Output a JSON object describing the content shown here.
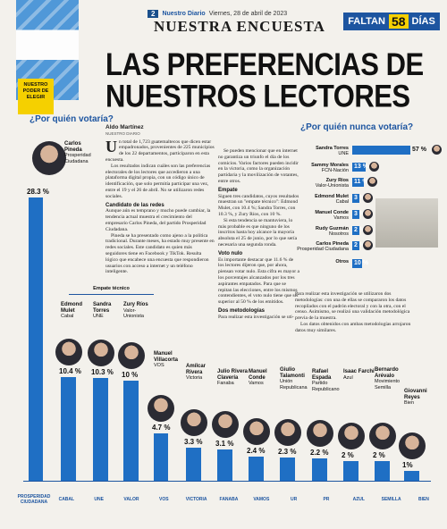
{
  "header": {
    "page_number": "2",
    "paper": "Nuestro Diario",
    "date": "Viernes, 28 de abril de 2023",
    "section": "NUESTRA ENCUESTA",
    "faltan_label": "FALTAN",
    "faltan_days": "58",
    "faltan_unit": "DÍAS",
    "headline": "LAS PREFERENCIAS DE NUESTROS LECTORES",
    "brand": "NUESTRO PODER DE ELEGIR"
  },
  "left_chart": {
    "question": "¿Por quién votaría?",
    "empate_label": "Empate técnico"
  },
  "chart_data": [
    {
      "type": "bar",
      "title": "¿Por quién votaría?",
      "categories": [
        "Carlos Pineda",
        "Edmond Mulet",
        "Sandra Torres",
        "Zury Ríos",
        "Manuel Villacorta",
        "Amílcar Rivera",
        "Julio Rivera Clavería",
        "Manuel Conde",
        "Giulio Talamonti",
        "Rafael Espada",
        "Isaac Farchi",
        "Bernardo Arévalo",
        "Giovanni Reyes"
      ],
      "parties": [
        "Prosperidad Ciudadana",
        "Cabal",
        "UNE",
        "Valor-Unionista",
        "VOS",
        "Victoria",
        "Fanaba",
        "Vamos",
        "Unión Republicana",
        "Partido Republicano",
        "Azul",
        "Movimiento Semilla",
        "Bien"
      ],
      "values": [
        28.3,
        10.4,
        10.3,
        10,
        4.7,
        3.3,
        3.1,
        2.4,
        2.3,
        2.2,
        2,
        2,
        1
      ],
      "labels": [
        "28.3 %",
        "10.4 %",
        "10.3 %",
        "10 %",
        "4.7 %",
        "3.3 %",
        "3.1 %",
        "2.4 %",
        "2.3 %",
        "2.2 %",
        "2 %",
        "2 %",
        "1%"
      ]
    },
    {
      "type": "bar",
      "title": "¿Por quién nunca votaría?",
      "categories": [
        "Sandra Torres",
        "Sammy Morales",
        "Zury Ríos",
        "Edmond Mulet",
        "Manuel Conde",
        "Rudy Guzmán",
        "Carlos Pineda",
        "Otros"
      ],
      "parties": [
        "UNE",
        "FCN-Nación",
        "Valor-Unionista",
        "Cabal",
        "Vamos",
        "Nosotros",
        "Prosperidad Ciudadana",
        ""
      ],
      "values": [
        57,
        13,
        11,
        3,
        3,
        2,
        2,
        10
      ],
      "labels": [
        "57 %",
        "13 %",
        "11 %",
        "3 %",
        "3 %",
        "2 %",
        "2 %",
        "10 %"
      ]
    }
  ],
  "article": {
    "author": "Aldo Martínez",
    "author_role": "NUESTRO DIARIO",
    "p1": "n total de 1,723 guatemaltecos que dicen estar empadronados, provenientes de 225 municipios de los 22 departamentos, participaron en esta encuesta.",
    "p2": "Los resultados indican cuáles son las preferencias electorales de los lectores que accedieron a una plataforma digital propia, con un código único de identificación, que solo permitía participar una vez, entre el 19 y el 26 de abril. No se utilizaron redes sociales.",
    "h1": "Candidato de las redes",
    "p3": "Aunque aún es temprano y mucho puede cambiar, la tendencia actual muestra el crecimiento del empresario Carlos Pineda, del partido Prosperidad Ciudadana.",
    "p4": "Pineda se ha presentado como ajeno a la política tradicional. Durante meses, ha estado muy presente en redes sociales. Este candidato es quien más seguidores tiene en Facebook y TikTok. Resulta lógico que encabece una encuesta que respondieron usuarios con acceso a internet y un teléfono inteligente.",
    "p5": "Se pueden mencionar que en internet no garantiza un triunfo el día de los comicios. Varios factores pueden incidir en la victoria, como la organización partidaria y la movilización de votantes, entre otros.",
    "h2": "Empate",
    "p6": "Siguen tres candidatos, cuyos resultados muestran un \"empate técnico\": Edmond Mulet, con 10.4 %; Sandra Torres, con 10.3 %, y Zury Ríos, con 10 %.",
    "p7": "Si esta tendencia se mantuviera, lo más probable es que ninguno de los inscritos hasta hoy alcance la mayoría absoluta el 25 de junio, por lo que sería necesaria una segunda ronda.",
    "h3": "Voto nulo",
    "p8": "Es importante destacar que 11.6 % de los lectores dijeron que, por ahora, piensan votar nulo. Esta cifra es mayor a los porcentajes alcanzados por los tres aspirantes empatados. Para que se repitan las elecciones, entre los mismos contendientes, el voto nulo tiene que ser superior al 50 % de los emitidos.",
    "h4": "Dos metodologías",
    "p9": "Para realizar esta investigación se utilizaron dos metodologías: con una de ellas se compararon los datos recopilados con el padrón electoral y con la otra, con el censo. Asimismo, se realizó una validación metodológica previa de la muestra.",
    "p10": "Los datos obtenidos con ambas metodologías arrojaron datos muy similares."
  },
  "right_chart": {
    "question": "¿Por quién nunca votaría?"
  },
  "logos": [
    "PROSPERIDAD CIUDADANA",
    "CABAL",
    "UNE",
    "VALOR",
    "VOS",
    "VICTORIA",
    "FANABA",
    "VAMOS",
    "UR",
    "PR",
    "AZUL",
    "SEMILLA",
    "BIEN"
  ],
  "colors": {
    "bar": "#1f6fc4",
    "accent": "#1d55a0",
    "highlight": "#f5d000"
  }
}
